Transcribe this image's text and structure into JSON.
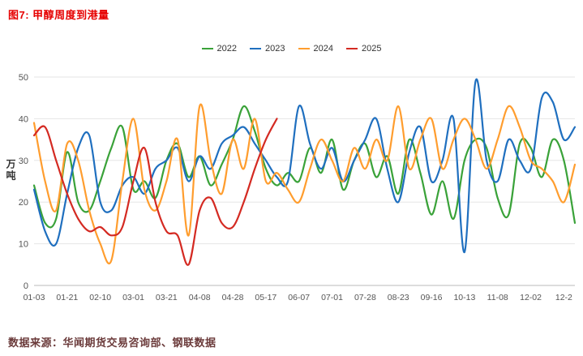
{
  "title": "图7: 甲醇周度到港量",
  "footer": "数据来源：华闻期货交易咨询部、钢联数据",
  "colors": {
    "title": "#e60000",
    "footer": "#6b3b3b",
    "axis_text": "#555555",
    "grid": "#e6e6e6",
    "axis_line": "#bbbbbb"
  },
  "chart_data": {
    "type": "line",
    "title": "甲醇周度到港量",
    "xlabel": "",
    "ylabel": "万吨",
    "ylim": [
      0,
      50
    ],
    "yticks": [
      0,
      10,
      20,
      30,
      40,
      50
    ],
    "grid": "horizontal",
    "legend_position": "top-center",
    "n_points": 50,
    "tick_every": 3,
    "x_tick_labels": [
      "01-03",
      "01-21",
      "02-10",
      "03-01",
      "03-21",
      "04-08",
      "04-28",
      "05-17",
      "06-07",
      "07-01",
      "07-28",
      "08-23",
      "09-16",
      "10-13",
      "11-08",
      "12-02",
      "12-2"
    ],
    "series": [
      {
        "name": "2022",
        "color": "#3aa239",
        "values": [
          24,
          15,
          16,
          32,
          20,
          18,
          25,
          33,
          38,
          23,
          25,
          21,
          30,
          34,
          26,
          31,
          24,
          29,
          35,
          43,
          37,
          28,
          24,
          27,
          25,
          33,
          27,
          35,
          23,
          30,
          34,
          26,
          31,
          22,
          35,
          27,
          17,
          25,
          16,
          30,
          35,
          33,
          21,
          17,
          34,
          33,
          26,
          35,
          30,
          15
        ]
      },
      {
        "name": "2023",
        "color": "#1f6fbf",
        "values": [
          23,
          13,
          10,
          22,
          33,
          36,
          20,
          18,
          24,
          26,
          22,
          28,
          30,
          33,
          25,
          31,
          28,
          34,
          36,
          38,
          34,
          30,
          26,
          25,
          43,
          34,
          28,
          33,
          25,
          30,
          35,
          40,
          28,
          20,
          32,
          38,
          25,
          30,
          40,
          8,
          49,
          30,
          25,
          35,
          30,
          28,
          45,
          44,
          35,
          38
        ]
      },
      {
        "name": "2024",
        "color": "#ff9d2e",
        "values": [
          39,
          25,
          18,
          34,
          30,
          18,
          10,
          6,
          25,
          40,
          23,
          18,
          25,
          35,
          12,
          43,
          30,
          22,
          35,
          28,
          40,
          25,
          27,
          23,
          20,
          28,
          35,
          30,
          25,
          33,
          28,
          35,
          30,
          43,
          28,
          35,
          40,
          28,
          35,
          40,
          35,
          28,
          35,
          43,
          38,
          30,
          28,
          25,
          20,
          29
        ]
      },
      {
        "name": "2025",
        "color": "#d42a22",
        "values": [
          36,
          38,
          30,
          22,
          16,
          13,
          14,
          12,
          14,
          25,
          33,
          20,
          13,
          12,
          5,
          18,
          21,
          15,
          14,
          20,
          28,
          35,
          40
        ]
      }
    ]
  }
}
